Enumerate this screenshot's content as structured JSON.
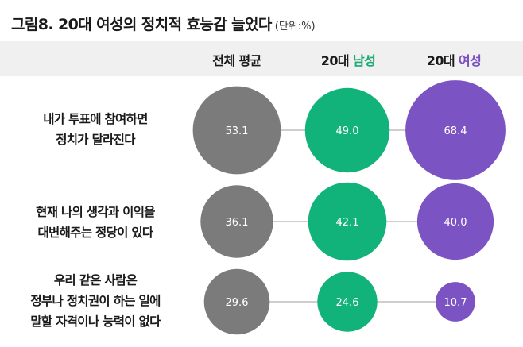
{
  "title": "그림8. 20대 여성의 정치적 효능감 늘었다",
  "unit": "(단위:%)",
  "columns": {
    "avg": "전체 평균",
    "male_prefix": "20대 ",
    "male_accent": "남성",
    "female_prefix": "20대 ",
    "female_accent": "여성"
  },
  "rows": [
    {
      "line1": "내가 투표에 참여하면",
      "line2": "정치가 달라진다",
      "line3": ""
    },
    {
      "line1": "현재 나의 생각과 이익을",
      "line2": "대변해주는 정당이 있다",
      "line3": ""
    },
    {
      "line1": "우리 같은 사람은",
      "line2": "정부나 정치권이 하는 일에",
      "line3": "말할 자격이나 능력이 없다"
    }
  ],
  "colors": {
    "avg": "#7b7b7b",
    "male": "#12b37a",
    "female": "#7c53c3",
    "connector": "#cfcfcf"
  },
  "chart_data": {
    "type": "bubble",
    "title": "그림8. 20대 여성의 정치적 효능감 늘었다",
    "unit": "%",
    "categories": [
      "내가 투표에 참여하면 정치가 달라진다",
      "현재 나의 생각과 이익을 대변해주는 정당이 있다",
      "우리 같은 사람은 정부나 정치권이 하는 일에 말할 자격이나 능력이 없다"
    ],
    "series": [
      {
        "name": "전체 평균",
        "values": [
          53.1,
          36.1,
          29.6
        ]
      },
      {
        "name": "20대 남성",
        "values": [
          49.0,
          42.1,
          24.6
        ]
      },
      {
        "name": "20대 여성",
        "values": [
          68.4,
          40.0,
          10.7
        ]
      }
    ]
  }
}
